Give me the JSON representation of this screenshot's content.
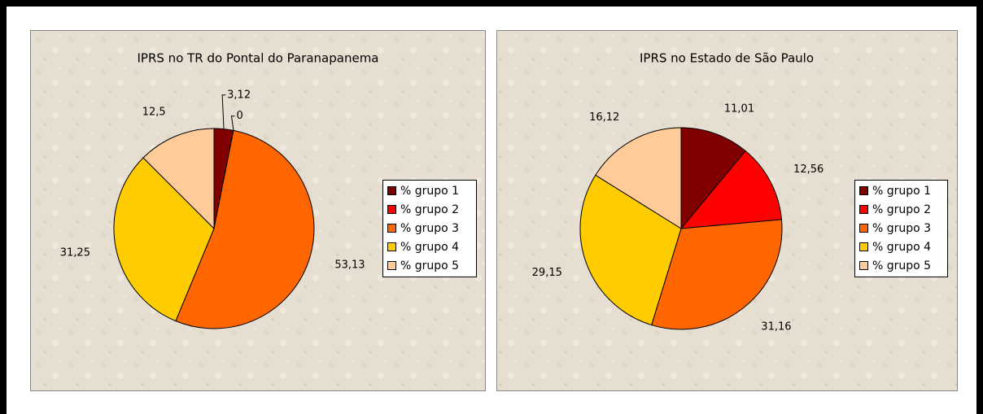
{
  "chart_data": [
    {
      "type": "pie",
      "title": "IPRS no TR do Pontal do Paranapanema",
      "categories": [
        "% grupo 1",
        "% grupo 2",
        "% grupo 3",
        "% grupo 4",
        "% grupo 5"
      ],
      "values": [
        3.12,
        0,
        53.13,
        31.25,
        12.5
      ],
      "value_labels": [
        "3,12",
        "0",
        "53,13",
        "31,25",
        "12,5"
      ],
      "colors": [
        "#800000",
        "#ff0000",
        "#ff6600",
        "#ffcc00",
        "#ffcc99"
      ],
      "legend": "right"
    },
    {
      "type": "pie",
      "title": "IPRS no Estado de São Paulo",
      "categories": [
        "% grupo 1",
        "% grupo 2",
        "% grupo 3",
        "% grupo 4",
        "% grupo 5"
      ],
      "values": [
        11.01,
        12.56,
        31.16,
        29.15,
        16.12
      ],
      "value_labels": [
        "11,01",
        "12,56",
        "31,16",
        "29,15",
        "16,12"
      ],
      "colors": [
        "#800000",
        "#ff0000",
        "#ff6600",
        "#ffcc00",
        "#ffcc99"
      ],
      "legend": "right"
    }
  ]
}
